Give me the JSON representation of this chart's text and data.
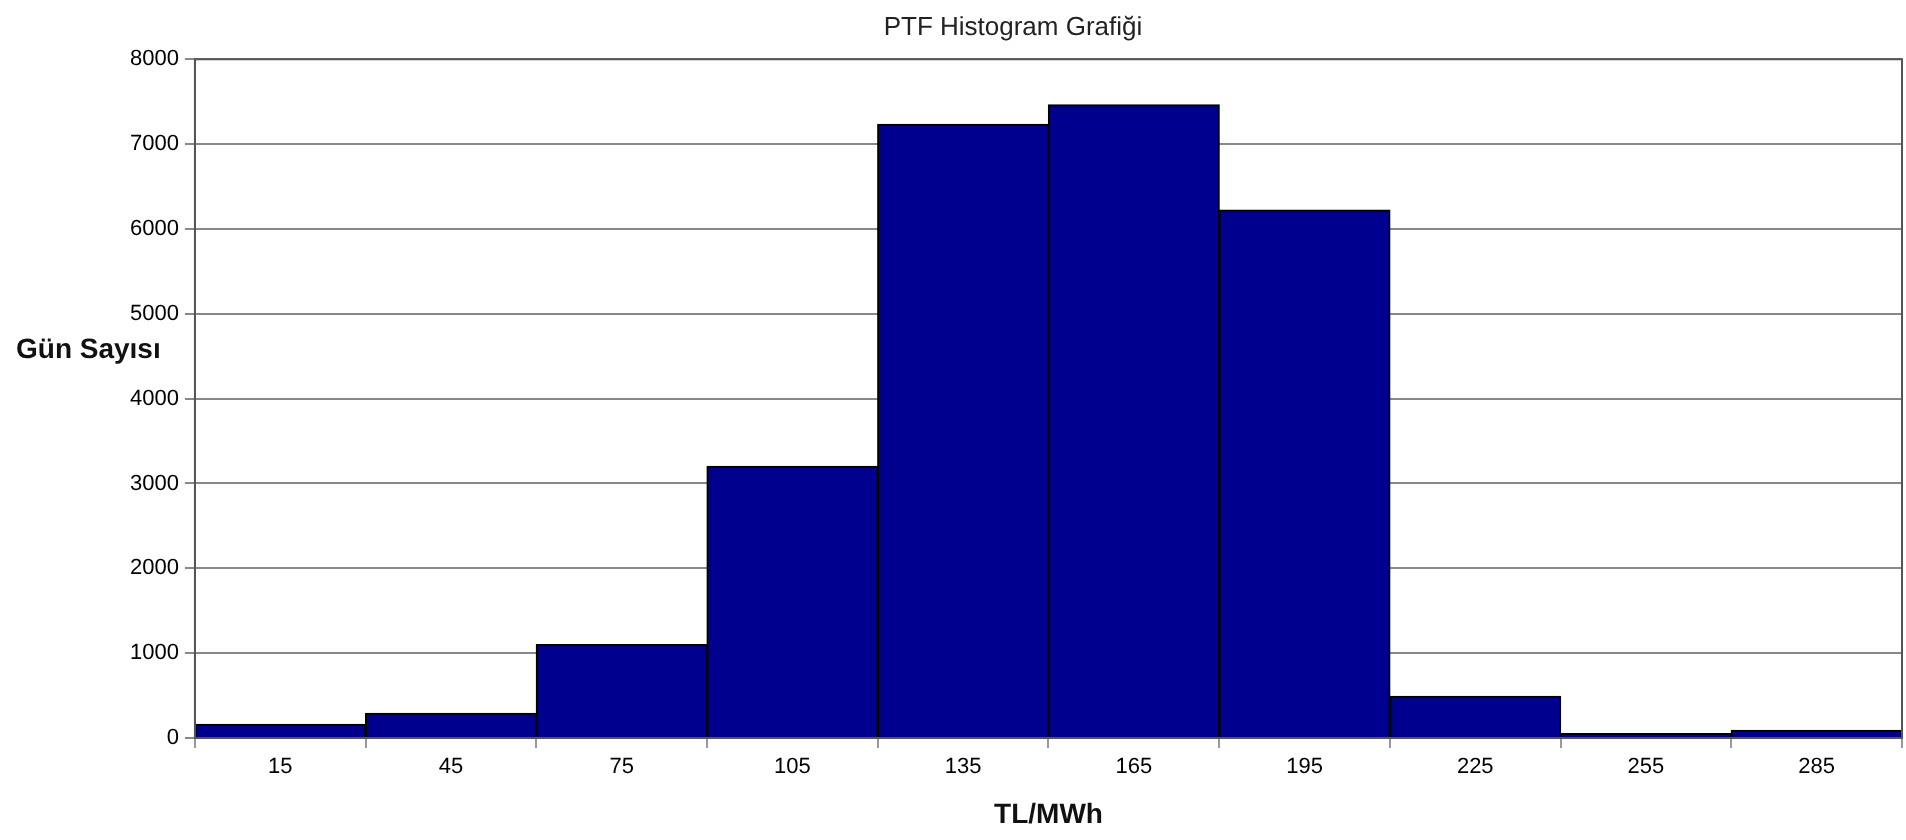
{
  "chart_data": {
    "type": "histogram",
    "title": "PTF Histogram Grafiği",
    "xlabel": "TL/MWh",
    "ylabel": "Gün Sayısı",
    "bins": [
      0,
      30,
      60,
      90,
      120,
      150,
      180,
      210,
      240,
      270,
      300
    ],
    "values": [
      160,
      290,
      1100,
      3200,
      7230,
      7460,
      6220,
      490,
      50,
      90
    ],
    "color": "#00008f",
    "xlim": [
      0,
      300
    ],
    "xticks": [
      15,
      45,
      75,
      105,
      135,
      165,
      195,
      225,
      255,
      285
    ],
    "ylim": [
      0,
      8000
    ],
    "yticks": [
      0,
      1000,
      2000,
      3000,
      4000,
      5000,
      6000,
      7000,
      8000
    ],
    "grid": "y",
    "legend": false
  }
}
